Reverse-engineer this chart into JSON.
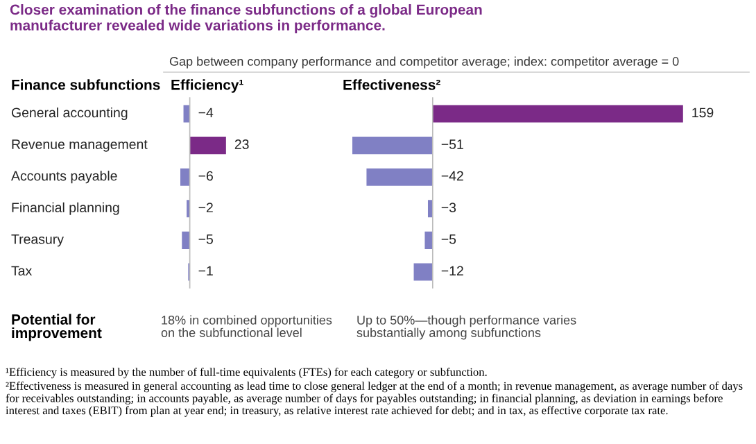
{
  "chart_data": [
    {
      "type": "bar",
      "orientation": "horizontal",
      "title": "Efficiency¹",
      "ylabel": "Finance subfunctions",
      "categories": [
        "General accounting",
        "Revenue management",
        "Accounts payable",
        "Financial planning",
        "Treasury",
        "Tax"
      ],
      "values": [
        -4,
        23,
        -6,
        -2,
        -5,
        -1
      ],
      "colors": [
        "#8080c4",
        "#7b2a87",
        "#8080c4",
        "#8080c4",
        "#8080c4",
        "#8080c4"
      ],
      "data_labels": true,
      "tick_labels": "y",
      "annotations": [
        "Closer examination of the finance subfunctions of a global European\nmanufacturer revealed wide variations in performance.",
        "Gap between company performance and competitor average; index: competitor average = 0",
        "Potential for\nimprovement",
        "18% in combined opportunities\non the subfunctional level",
        "¹Efficiency is measured by the number of full-time equivalents (FTEs) for each category or subfunction.",
        "²Effectiveness is measured in general accounting as lead time to close general ledger at the end of a month; in revenue management, as average number of days for receivables outstanding; in accounts payable, as average number of days for payables outstanding; in financial planning, as deviation in earnings before interest and taxes (EBIT) from plan at year end; in treasury, as relative interest rate achieved for debt; and in tax, as effective corporate tax rate."
      ]
    },
    {
      "type": "bar",
      "orientation": "horizontal",
      "title": "Effectiveness²",
      "values": [
        159,
        -51,
        -42,
        -3,
        -5,
        -12
      ],
      "colors": [
        "#7b2a87",
        "#8080c4",
        "#8080c4",
        "#8080c4",
        "#8080c4",
        "#8080c4"
      ],
      "data_labels": true,
      "tick_labels": false,
      "annotations": [
        "Up to 50%—though performance varies\nsubstantially among subfunctions"
      ]
    }
  ]
}
